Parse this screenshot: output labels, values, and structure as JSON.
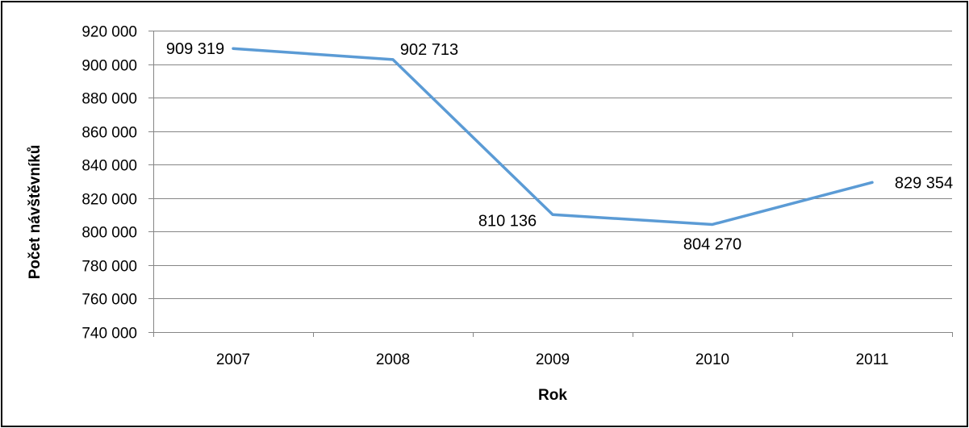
{
  "chart_data": {
    "type": "line",
    "title": "",
    "xlabel": "Rok",
    "ylabel": "Počet návštěvníků",
    "categories": [
      "2007",
      "2008",
      "2009",
      "2010",
      "2011"
    ],
    "series": [
      {
        "values": [
          909319,
          902713,
          810136,
          804270,
          829354
        ],
        "color": "#5B9BD5"
      }
    ],
    "data_labels": [
      "909 319",
      "902 713",
      "810 136",
      "804 270",
      "829 354"
    ],
    "ylim": [
      740000,
      920000
    ],
    "y_ticks": [
      740000,
      760000,
      780000,
      800000,
      820000,
      840000,
      860000,
      880000,
      900000,
      920000
    ],
    "y_tick_labels": [
      "740 000",
      "760 000",
      "780 000",
      "800 000",
      "820 000",
      "840 000",
      "860 000",
      "880 000",
      "900 000",
      "920 000"
    ],
    "grid": true,
    "legend": "none"
  }
}
